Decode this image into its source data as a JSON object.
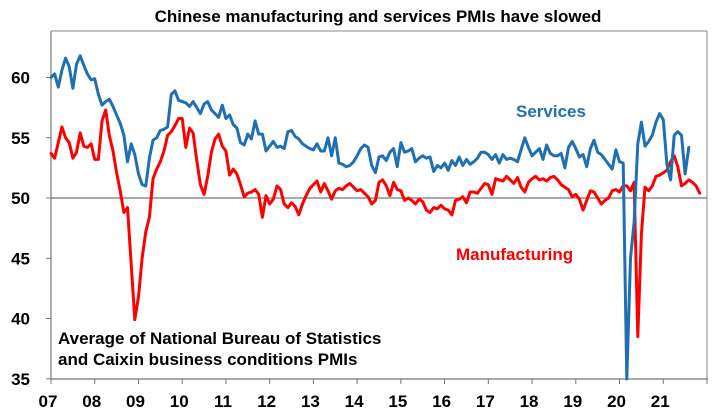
{
  "chart_data": {
    "type": "line",
    "title": "Chinese manufacturing and services PMIs have slowed",
    "xlabel": "",
    "ylabel": "",
    "x_start": "2007-01",
    "x_frequency": "monthly",
    "xlim": [
      2007,
      2022
    ],
    "ylim": [
      35,
      64
    ],
    "yticks": [
      35,
      40,
      45,
      50,
      55,
      60
    ],
    "ytick_labels": [
      "35",
      "40",
      "45",
      "50",
      "55",
      "60"
    ],
    "xtick_years": [
      2007,
      2008,
      2009,
      2010,
      2011,
      2012,
      2013,
      2014,
      2015,
      2016,
      2017,
      2018,
      2019,
      2020,
      2021
    ],
    "xtick_labels": [
      "07",
      "08",
      "09",
      "10",
      "11",
      "12",
      "13",
      "14",
      "15",
      "16",
      "17",
      "18",
      "19",
      "20",
      "21"
    ],
    "reference_line": 50,
    "grid": false,
    "legend": "inline labels",
    "annotation": [
      "Average of National Bureau of Statistics",
      "and Caixin business conditions PMIs"
    ],
    "series": [
      {
        "name": "Services",
        "color": "#1f6fb5",
        "label_placement": "upper-right",
        "values": [
          60.0,
          60.3,
          59.2,
          60.6,
          61.6,
          60.9,
          59.1,
          61.1,
          61.8,
          61.0,
          60.3,
          59.8,
          59.9,
          58.6,
          57.7,
          58.0,
          58.2,
          57.6,
          56.9,
          56.2,
          55.2,
          53.0,
          54.5,
          53.6,
          52.0,
          51.1,
          51.0,
          53.3,
          54.8,
          55.0,
          55.6,
          55.7,
          55.9,
          58.6,
          58.9,
          58.1,
          58.0,
          57.9,
          57.6,
          58.0,
          57.5,
          57.0,
          57.8,
          58.0,
          57.3,
          57.0,
          56.7,
          57.7,
          56.6,
          56.9,
          56.1,
          55.8,
          54.6,
          54.4,
          55.3,
          54.9,
          56.4,
          55.3,
          55.3,
          53.9,
          54.3,
          54.7,
          54.2,
          54.3,
          54.1,
          55.5,
          55.6,
          55.1,
          54.9,
          54.5,
          54.3,
          54.1,
          54.0,
          54.5,
          53.9,
          53.9,
          55.0,
          53.5,
          55.0,
          52.9,
          52.8,
          52.6,
          52.7,
          53.0,
          53.5,
          54.1,
          54.4,
          54.2,
          52.7,
          52.1,
          53.4,
          53.5,
          53.1,
          53.8,
          54.1,
          52.6,
          54.6,
          53.8,
          53.9,
          54.1,
          53.0,
          53.3,
          53.5,
          53.3,
          53.4,
          52.2,
          52.7,
          52.5,
          52.9,
          52.3,
          53.1,
          52.7,
          53.4,
          52.7,
          53.2,
          52.8,
          53.0,
          53.3,
          53.8,
          53.8,
          53.6,
          53.2,
          53.6,
          52.9,
          53.6,
          53.2,
          53.3,
          53.2,
          53.0,
          54.0,
          55.0,
          54.2,
          53.5,
          53.8,
          54.1,
          53.2,
          54.4,
          53.7,
          53.5,
          53.5,
          53.7,
          52.5,
          54.2,
          54.7,
          54.1,
          53.4,
          53.6,
          52.6,
          54.1,
          54.8,
          53.8,
          53.6,
          53.2,
          52.8,
          52.4,
          54.0,
          53.0,
          52.9,
          34.5,
          45.0,
          48.0,
          54.5,
          56.3,
          54.3,
          54.7,
          55.2,
          56.3,
          57.0,
          56.5,
          52.8,
          51.5,
          55.2,
          55.5,
          55.2,
          52.0,
          54.2
        ]
      },
      {
        "name": "Manufacturing",
        "color": "#ff0000",
        "label_placement": "lower-right",
        "values": [
          53.7,
          53.3,
          54.6,
          55.9,
          55.0,
          54.6,
          53.3,
          53.8,
          55.4,
          54.3,
          54.2,
          54.5,
          53.2,
          53.2,
          56.4,
          57.3,
          55.2,
          53.9,
          52.1,
          50.6,
          48.8,
          49.2,
          44.5,
          39.9,
          41.8,
          45.0,
          47.2,
          48.4,
          51.6,
          52.4,
          53.0,
          53.9,
          55.2,
          55.5,
          56.0,
          56.6,
          56.6,
          54.2,
          55.8,
          55.4,
          53.1,
          51.1,
          50.3,
          51.8,
          53.8,
          54.9,
          55.3,
          54.3,
          53.9,
          51.9,
          52.4,
          52.0,
          51.1,
          50.1,
          50.4,
          50.5,
          50.7,
          50.3,
          48.4,
          50.2,
          49.5,
          49.9,
          51.0,
          50.7,
          49.5,
          49.2,
          49.6,
          49.3,
          48.6,
          49.5,
          50.2,
          50.8,
          51.1,
          51.4,
          50.5,
          51.2,
          50.6,
          49.9,
          50.6,
          50.8,
          50.7,
          51.0,
          51.2,
          50.9,
          50.6,
          50.7,
          50.4,
          50.1,
          49.5,
          49.8,
          51.3,
          51.5,
          51.0,
          50.2,
          51.3,
          50.7,
          50.6,
          49.8,
          50.0,
          49.8,
          49.5,
          49.9,
          49.7,
          49.0,
          48.8,
          49.2,
          49.1,
          49.4,
          49.1,
          49.0,
          48.6,
          49.8,
          49.9,
          50.1,
          49.6,
          50.5,
          50.5,
          50.4,
          50.8,
          51.2,
          51.1,
          50.3,
          51.6,
          51.5,
          51.4,
          51.8,
          51.5,
          51.2,
          51.7,
          50.9,
          50.5,
          51.3,
          51.6,
          51.8,
          51.5,
          51.6,
          51.4,
          51.7,
          51.8,
          51.5,
          51.1,
          50.9,
          50.7,
          50.1,
          50.3,
          49.9,
          49.0,
          49.8,
          50.6,
          50.5,
          50.0,
          49.5,
          49.8,
          50.0,
          50.6,
          50.7,
          50.5,
          51.0,
          51.0,
          50.6,
          51.3,
          38.5,
          47.0,
          50.9,
          50.6,
          51.0,
          51.8,
          51.9,
          52.1,
          52.3,
          53.0,
          53.5,
          52.6,
          51.0,
          51.2,
          51.5,
          51.3,
          51.0,
          50.4
        ]
      }
    ]
  }
}
